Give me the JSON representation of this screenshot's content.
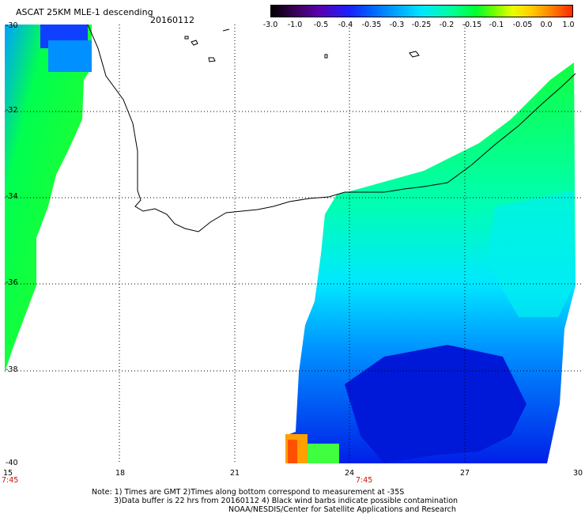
{
  "header": {
    "title": "ASCAT 25KM MLE-1 descending",
    "date": "20160112"
  },
  "colorbar": {
    "labels": [
      "-3.0",
      "-1.0",
      "-0.5",
      "-0.4",
      "-0.35",
      "-0.3",
      "-0.25",
      "-0.2",
      "-0.15",
      "-0.1",
      "-0.05",
      "0.0",
      "1.0"
    ],
    "colors": [
      "#000000",
      "#5a00b0",
      "#1a20ff",
      "#00a8ff",
      "#00e6ff",
      "#00ff30",
      "#e8ff00",
      "#ff8c00",
      "#ff2a00"
    ]
  },
  "axes": {
    "lat_labels": [
      "-30",
      "-32",
      "-34",
      "-36",
      "-38",
      "-40"
    ],
    "lon_labels": [
      "15",
      "18",
      "21",
      "24",
      "27",
      "30"
    ],
    "time_labels": [
      "7:45",
      "7:45"
    ]
  },
  "notes": {
    "line1": "Note: 1) Times are GMT 2)Times along bottom correspond to measurement at -35S",
    "line2": "3)Data buffer is 22 hrs from 20160112 4) Black wind barbs indicate possible contamination",
    "line3": "NOAA/NESDIS/Center for Satellite Applications and Research"
  },
  "map_data": {
    "extent": {
      "lon": [
        15,
        30
      ],
      "lat": [
        -40,
        -30
      ]
    },
    "gridlines": true,
    "swaths": [
      {
        "name": "west",
        "lon_range": [
          15,
          17.3
        ],
        "dominant": "green"
      },
      {
        "name": "east",
        "lon_range": [
          22.3,
          30
        ],
        "dominant": "cyan-blue"
      }
    ]
  }
}
